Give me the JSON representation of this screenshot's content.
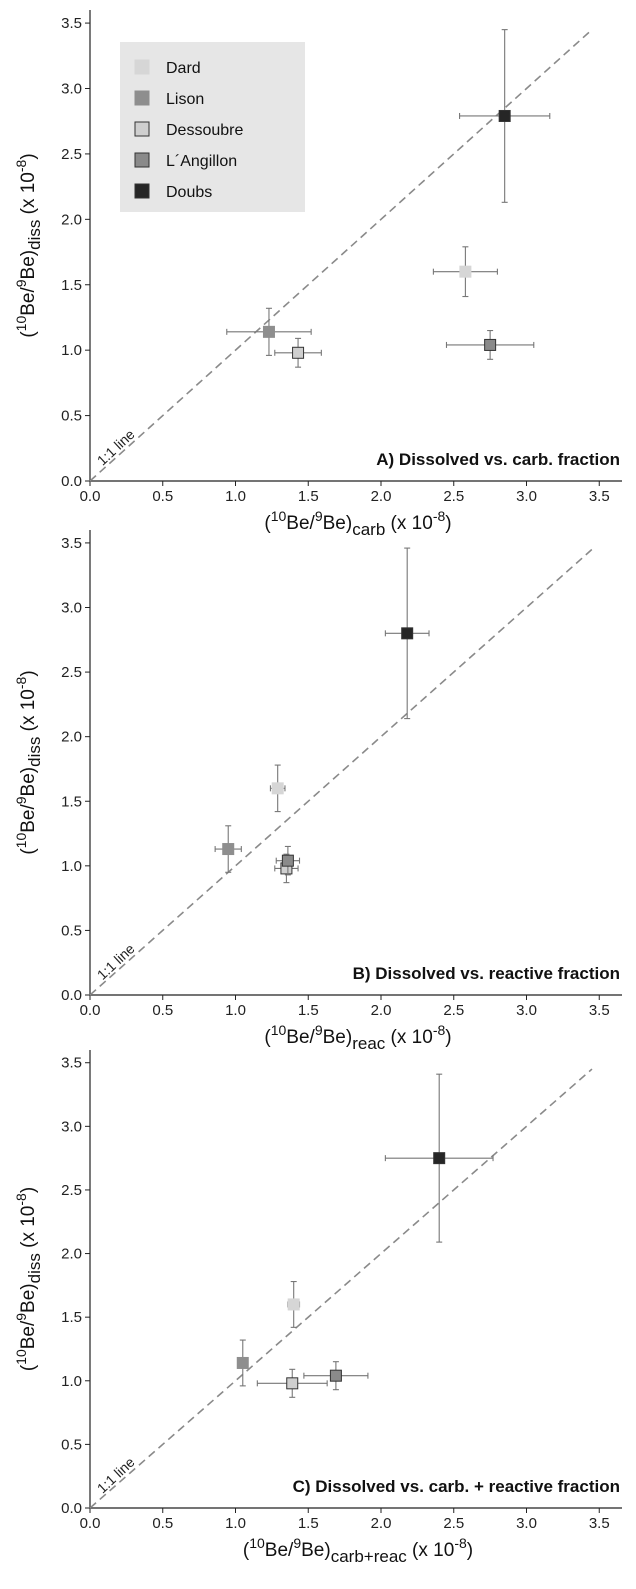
{
  "colors": {
    "Dard": "#d6d6d6",
    "Lison": "#8e8e8e",
    "Dessoubre": "#cfcfcf",
    "L´Angillon": "#8a8a8a",
    "Doubs": "#262626",
    "legend_bg": "#e6e6e6",
    "one_to_one": "#8a8a8a",
    "error_bar": "#777777"
  },
  "legend": {
    "items": [
      "Dard",
      "Lison",
      "Dessoubre",
      "L´Angillon",
      "Doubs"
    ],
    "placement": "top-left"
  },
  "chart_data": [
    {
      "type": "scatter",
      "panel_title": "A) Dissolved  vs. carb. fraction",
      "xlabel": {
        "pre": "(",
        "sup1": "10",
        "mid": "Be/",
        "sup2": "9",
        "base": "Be)",
        "sub": "carb",
        "post": " (x 10",
        "exp": "-8",
        "end": ")"
      },
      "ylabel": {
        "pre": "(",
        "sup1": "10",
        "mid": "Be/",
        "sup2": "9",
        "base": "Be)",
        "sub": "diss",
        "post": " (x 10",
        "exp": "-8",
        "end": ")"
      },
      "xlim": [
        0,
        3.6
      ],
      "ylim": [
        0,
        3.6
      ],
      "xticks": [
        "0.0",
        "0.5",
        "1.0",
        "1.5",
        "2.0",
        "2.5",
        "3.0",
        "3.5"
      ],
      "yticks": [
        "0.0",
        "0.5",
        "1.0",
        "1.5",
        "2.0",
        "2.5",
        "3.0",
        "3.5"
      ],
      "reference_line": {
        "label": "1:1 line",
        "from": [
          0,
          0
        ],
        "to": [
          3.45,
          3.45
        ]
      },
      "series": [
        {
          "name": "Dard",
          "x": 2.58,
          "y": 1.6,
          "xerr": 0.22,
          "yerr": 0.19
        },
        {
          "name": "Lison",
          "x": 1.23,
          "y": 1.14,
          "xerr": 0.29,
          "yerr": 0.18
        },
        {
          "name": "Dessoubre",
          "x": 1.43,
          "y": 0.98,
          "xerr": 0.16,
          "yerr": 0.11
        },
        {
          "name": "L´Angillon",
          "x": 2.75,
          "y": 1.04,
          "xerr": 0.3,
          "yerr": 0.11
        },
        {
          "name": "Doubs",
          "x": 2.85,
          "y": 2.79,
          "xerr": 0.31,
          "yerr": 0.66
        }
      ]
    },
    {
      "type": "scatter",
      "panel_title": "B) Dissolved vs. reactive fraction",
      "xlabel": {
        "pre": "(",
        "sup1": "10",
        "mid": "Be/",
        "sup2": "9",
        "base": "Be)",
        "sub": "reac",
        "post": " (x 10",
        "exp": "-8",
        "end": ")"
      },
      "ylabel": {
        "pre": "(",
        "sup1": "10",
        "mid": "Be/",
        "sup2": "9",
        "base": "Be)",
        "sub": "diss",
        "post": " (x 10",
        "exp": "-8",
        "end": ")"
      },
      "xlim": [
        0,
        3.6
      ],
      "ylim": [
        0,
        3.6
      ],
      "xticks": [
        "0.0",
        "0.5",
        "1.0",
        "1.5",
        "2.0",
        "2.5",
        "3.0",
        "3.5"
      ],
      "yticks": [
        "0.0",
        "0.5",
        "1.0",
        "1.5",
        "2.0",
        "2.5",
        "3.0",
        "3.5"
      ],
      "reference_line": {
        "label": "1:1 line",
        "from": [
          0,
          0
        ],
        "to": [
          3.45,
          3.45
        ]
      },
      "series": [
        {
          "name": "Dard",
          "x": 1.29,
          "y": 1.6,
          "xerr": 0.05,
          "yerr": 0.18
        },
        {
          "name": "Lison",
          "x": 0.95,
          "y": 1.13,
          "xerr": 0.09,
          "yerr": 0.18
        },
        {
          "name": "Dessoubre",
          "x": 1.35,
          "y": 0.98,
          "xerr": 0.08,
          "yerr": 0.11
        },
        {
          "name": "L´Angillon",
          "x": 1.36,
          "y": 1.04,
          "xerr": 0.08,
          "yerr": 0.11
        },
        {
          "name": "Doubs",
          "x": 2.18,
          "y": 2.8,
          "xerr": 0.15,
          "yerr": 0.66
        }
      ]
    },
    {
      "type": "scatter",
      "panel_title": "C) Dissolved vs. carb. + reactive fraction",
      "xlabel": {
        "pre": "(",
        "sup1": "10",
        "mid": "Be/",
        "sup2": "9",
        "base": "Be)",
        "sub": "carb+reac",
        "post": " (x 10",
        "exp": "-8",
        "end": ")"
      },
      "ylabel": {
        "pre": "(",
        "sup1": "10",
        "mid": "Be/",
        "sup2": "9",
        "base": "Be)",
        "sub": "diss",
        "post": " (x 10",
        "exp": "-8",
        "end": ")"
      },
      "xlim": [
        0,
        3.6
      ],
      "ylim": [
        0,
        3.6
      ],
      "xticks": [
        "0.0",
        "0.5",
        "1.0",
        "1.5",
        "2.0",
        "2.5",
        "3.0",
        "3.5"
      ],
      "yticks": [
        "0.0",
        "0.5",
        "1.0",
        "1.5",
        "2.0",
        "2.5",
        "3.0",
        "3.5"
      ],
      "reference_line": {
        "label": "1:1 line",
        "from": [
          0,
          0
        ],
        "to": [
          3.45,
          3.45
        ]
      },
      "series": [
        {
          "name": "Dard",
          "x": 1.4,
          "y": 1.6,
          "xerr": 0.04,
          "yerr": 0.18
        },
        {
          "name": "Lison",
          "x": 1.05,
          "y": 1.14,
          "xerr": 0.0,
          "yerr": 0.18
        },
        {
          "name": "Dessoubre",
          "x": 1.39,
          "y": 0.98,
          "xerr": 0.24,
          "yerr": 0.11
        },
        {
          "name": "L´Angillon",
          "x": 1.69,
          "y": 1.04,
          "xerr": 0.22,
          "yerr": 0.11
        },
        {
          "name": "Doubs",
          "x": 2.4,
          "y": 2.75,
          "xerr": 0.37,
          "yerr": 0.66
        }
      ]
    }
  ]
}
